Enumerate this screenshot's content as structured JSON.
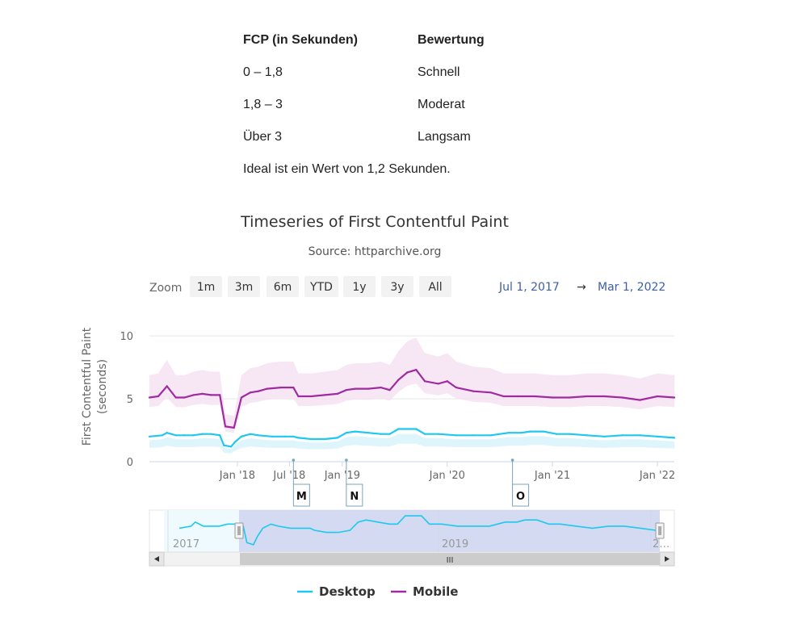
{
  "fcp_table": {
    "header": [
      "FCP (in Sekunden)",
      "Bewertung"
    ],
    "rows": [
      [
        "0 – 1,8",
        "Schnell"
      ],
      [
        "1,8 – 3",
        "Moderat"
      ],
      [
        "Über 3",
        "Langsam"
      ]
    ],
    "note": "Ideal ist ein Wert von 1,2 Sekunden."
  },
  "zoom": {
    "label": "Zoom",
    "buttons": [
      "1m",
      "3m",
      "6m",
      "YTD",
      "1y",
      "3y",
      "All"
    ],
    "range_from": "Jul 1, 2017",
    "range_arrow": "→",
    "range_to": "Mar 1, 2022"
  },
  "navigator": {
    "labels": [
      "2017",
      "2019",
      "2…"
    ],
    "scroll_grip": "III"
  },
  "flags": [
    {
      "date": "2018-07-15",
      "label": "M"
    },
    {
      "date": "2019-01-15",
      "label": "N"
    },
    {
      "date": "2020-08-15",
      "label": "O"
    }
  ],
  "colors": {
    "desktop": "#1ec8ee",
    "mobile": "#a02aa0",
    "range_text": "#3d5fa5",
    "navigator_fill": "#ccd4ef"
  },
  "chart_data": {
    "type": "line",
    "title": "Timeseries of First Contentful Paint",
    "subtitle": "Source: httparchive.org",
    "ylabel": "First Contentful Paint (seconds)",
    "ylabel_lines": [
      "First Contentful Paint",
      "(seconds)"
    ],
    "ylim": [
      0,
      12
    ],
    "yticks": [
      0,
      5,
      10
    ],
    "xlim": [
      "2017-03-01",
      "2022-03-01"
    ],
    "xticks": [
      {
        "date": "2018-01-01",
        "label": "Jan '18"
      },
      {
        "date": "2018-07-01",
        "label": "Jul '18"
      },
      {
        "date": "2019-01-01",
        "label": "Jan '19"
      },
      {
        "date": "2020-01-01",
        "label": "Jan '20"
      },
      {
        "date": "2021-01-01",
        "label": "Jan '21"
      },
      {
        "date": "2022-01-01",
        "label": "Jan '22"
      }
    ],
    "legend_position": "bottom",
    "series": [
      {
        "name": "Desktop",
        "color": "#1ec8ee",
        "points": [
          [
            "2017-03-01",
            2.0
          ],
          [
            "2017-04-15",
            2.1
          ],
          [
            "2017-05-01",
            2.3
          ],
          [
            "2017-06-01",
            2.1
          ],
          [
            "2017-07-01",
            2.1
          ],
          [
            "2017-08-01",
            2.1
          ],
          [
            "2017-09-01",
            2.2
          ],
          [
            "2017-10-01",
            2.2
          ],
          [
            "2017-11-01",
            2.1
          ],
          [
            "2017-11-15",
            1.3
          ],
          [
            "2017-12-10",
            1.2
          ],
          [
            "2017-12-25",
            1.6
          ],
          [
            "2018-01-15",
            2.0
          ],
          [
            "2018-02-15",
            2.2
          ],
          [
            "2018-03-15",
            2.1
          ],
          [
            "2018-05-01",
            2.0
          ],
          [
            "2018-06-15",
            2.0
          ],
          [
            "2018-07-15",
            2.0
          ],
          [
            "2018-08-01",
            1.9
          ],
          [
            "2018-09-15",
            1.8
          ],
          [
            "2018-11-01",
            1.8
          ],
          [
            "2018-12-15",
            1.9
          ],
          [
            "2019-01-15",
            2.3
          ],
          [
            "2019-02-15",
            2.4
          ],
          [
            "2019-04-01",
            2.3
          ],
          [
            "2019-05-15",
            2.2
          ],
          [
            "2019-06-15",
            2.2
          ],
          [
            "2019-07-15",
            2.6
          ],
          [
            "2019-09-15",
            2.6
          ],
          [
            "2019-10-15",
            2.2
          ],
          [
            "2019-12-01",
            2.2
          ],
          [
            "2020-02-01",
            2.1
          ],
          [
            "2020-04-01",
            2.1
          ],
          [
            "2020-06-01",
            2.1
          ],
          [
            "2020-08-01",
            2.3
          ],
          [
            "2020-09-15",
            2.3
          ],
          [
            "2020-10-15",
            2.4
          ],
          [
            "2020-12-01",
            2.4
          ],
          [
            "2021-01-15",
            2.2
          ],
          [
            "2021-03-01",
            2.2
          ],
          [
            "2021-05-01",
            2.1
          ],
          [
            "2021-07-01",
            2.0
          ],
          [
            "2021-09-01",
            2.1
          ],
          [
            "2021-11-01",
            2.1
          ],
          [
            "2022-01-01",
            2.0
          ],
          [
            "2022-03-01",
            1.9
          ]
        ]
      },
      {
        "name": "Mobile",
        "color": "#a02aa0",
        "points": [
          [
            "2017-03-01",
            5.1
          ],
          [
            "2017-04-01",
            5.2
          ],
          [
            "2017-05-01",
            6.0
          ],
          [
            "2017-06-01",
            5.1
          ],
          [
            "2017-07-01",
            5.1
          ],
          [
            "2017-08-01",
            5.3
          ],
          [
            "2017-09-01",
            5.4
          ],
          [
            "2017-10-01",
            5.3
          ],
          [
            "2017-11-01",
            5.3
          ],
          [
            "2017-11-20",
            2.8
          ],
          [
            "2017-12-20",
            2.7
          ],
          [
            "2018-01-15",
            5.1
          ],
          [
            "2018-02-15",
            5.5
          ],
          [
            "2018-03-15",
            5.6
          ],
          [
            "2018-04-15",
            5.8
          ],
          [
            "2018-06-01",
            5.9
          ],
          [
            "2018-07-01",
            5.9
          ],
          [
            "2018-07-15",
            5.9
          ],
          [
            "2018-08-01",
            5.2
          ],
          [
            "2018-09-15",
            5.2
          ],
          [
            "2018-11-01",
            5.3
          ],
          [
            "2018-12-15",
            5.4
          ],
          [
            "2019-01-15",
            5.7
          ],
          [
            "2019-02-15",
            5.8
          ],
          [
            "2019-04-01",
            5.8
          ],
          [
            "2019-05-15",
            5.9
          ],
          [
            "2019-06-15",
            5.7
          ],
          [
            "2019-07-15",
            6.5
          ],
          [
            "2019-08-15",
            7.1
          ],
          [
            "2019-09-15",
            7.3
          ],
          [
            "2019-10-15",
            6.4
          ],
          [
            "2019-12-01",
            6.2
          ],
          [
            "2020-01-01",
            6.4
          ],
          [
            "2020-02-01",
            5.9
          ],
          [
            "2020-04-01",
            5.6
          ],
          [
            "2020-06-01",
            5.5
          ],
          [
            "2020-07-15",
            5.2
          ],
          [
            "2020-09-01",
            5.2
          ],
          [
            "2020-11-01",
            5.2
          ],
          [
            "2021-01-01",
            5.1
          ],
          [
            "2021-03-01",
            5.1
          ],
          [
            "2021-05-01",
            5.2
          ],
          [
            "2021-07-01",
            5.2
          ],
          [
            "2021-09-01",
            5.1
          ],
          [
            "2021-11-01",
            4.9
          ],
          [
            "2022-01-01",
            5.2
          ],
          [
            "2022-03-01",
            5.1
          ]
        ]
      }
    ]
  }
}
